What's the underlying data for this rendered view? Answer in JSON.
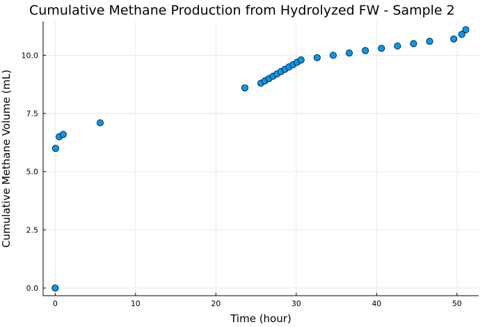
{
  "chart_data": {
    "type": "scatter",
    "title": "Cumulative Methane Production from Hydrolyzed FW - Sample 2",
    "xlabel": "Time (hour)",
    "ylabel": "Cumulative Methane Volume (mL)",
    "xlim": [
      -1.5,
      52.7
    ],
    "ylim": [
      -0.33,
      11.45
    ],
    "xticks": [
      0,
      10,
      20,
      30,
      40,
      50
    ],
    "xtick_labels": [
      "0",
      "10",
      "20",
      "30",
      "40",
      "50"
    ],
    "yticks": [
      0,
      2.5,
      5,
      7.5,
      10
    ],
    "ytick_labels": [
      "0.0",
      "2.5",
      "5.0",
      "7.5",
      "10.0"
    ],
    "grid": true,
    "legend": false,
    "marker_color": "#009af9",
    "series": [
      {
        "x": [
          0,
          0.05,
          0.5,
          1.0,
          5.6,
          23.6,
          25.6,
          26.1,
          26.6,
          27.1,
          27.6,
          28.1,
          28.6,
          29.1,
          29.6,
          30.1,
          30.6,
          32.6,
          34.6,
          36.6,
          38.6,
          40.6,
          42.6,
          44.6,
          46.6,
          49.6,
          50.6,
          51.1
        ],
        "y": [
          0,
          6.0,
          6.5,
          6.6,
          7.1,
          8.6,
          8.8,
          8.9,
          9.0,
          9.1,
          9.2,
          9.3,
          9.4,
          9.5,
          9.6,
          9.7,
          9.8,
          9.9,
          10.0,
          10.1,
          10.2,
          10.3,
          10.4,
          10.5,
          10.6,
          10.7,
          10.9,
          11.1
        ]
      }
    ]
  }
}
